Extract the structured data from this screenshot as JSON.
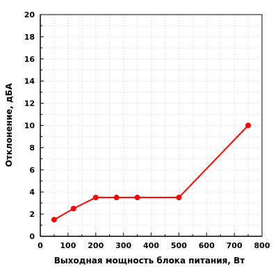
{
  "chart_data": {
    "type": "line",
    "title": "",
    "xlabel": "Выходная мощность блока питания, Вт",
    "ylabel": "Отклонение, дБА",
    "xlim": [
      0,
      800
    ],
    "ylim": [
      0,
      20
    ],
    "x_ticks": [
      0,
      100,
      200,
      300,
      400,
      500,
      600,
      700,
      800
    ],
    "y_ticks": [
      0,
      2,
      4,
      6,
      8,
      10,
      12,
      14,
      16,
      18,
      20
    ],
    "grid": true,
    "series": [
      {
        "x": [
          50,
          120,
          200,
          275,
          350,
          500,
          750
        ],
        "y": [
          1.5,
          2.5,
          3.5,
          3.5,
          3.5,
          3.5,
          10
        ],
        "color": "#ff0000"
      }
    ]
  }
}
